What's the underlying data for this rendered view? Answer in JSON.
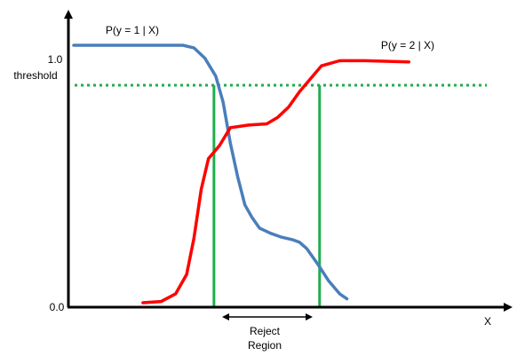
{
  "chart_data": {
    "type": "line",
    "xlabel": "X",
    "ylabel": "",
    "y_tick_labels": [
      "1.0",
      "threshold",
      "0.0"
    ],
    "threshold": 0.845,
    "ylim": [
      0,
      1.1
    ],
    "x_range": [
      0,
      1
    ],
    "series": [
      {
        "name": "P(y = 1 | X)",
        "color": "#4a7ebb",
        "points": [
          [
            0.0,
            1.0
          ],
          [
            0.3,
            1.0
          ],
          [
            0.33,
            0.99
          ],
          [
            0.36,
            0.95
          ],
          [
            0.39,
            0.88
          ],
          [
            0.41,
            0.78
          ],
          [
            0.43,
            0.62
          ],
          [
            0.45,
            0.49
          ],
          [
            0.47,
            0.38
          ],
          [
            0.49,
            0.33
          ],
          [
            0.51,
            0.29
          ],
          [
            0.54,
            0.27
          ],
          [
            0.57,
            0.255
          ],
          [
            0.6,
            0.245
          ],
          [
            0.62,
            0.235
          ],
          [
            0.64,
            0.21
          ],
          [
            0.67,
            0.15
          ],
          [
            0.7,
            0.085
          ],
          [
            0.73,
            0.035
          ],
          [
            0.75,
            0.015
          ]
        ]
      },
      {
        "name": "P(y = 2 | X)",
        "color": "#ff0000",
        "points": [
          [
            0.19,
            0.0
          ],
          [
            0.24,
            0.005
          ],
          [
            0.28,
            0.035
          ],
          [
            0.31,
            0.11
          ],
          [
            0.33,
            0.25
          ],
          [
            0.35,
            0.44
          ],
          [
            0.37,
            0.56
          ],
          [
            0.4,
            0.61
          ],
          [
            0.43,
            0.68
          ],
          [
            0.48,
            0.69
          ],
          [
            0.53,
            0.695
          ],
          [
            0.56,
            0.72
          ],
          [
            0.59,
            0.76
          ],
          [
            0.62,
            0.82
          ],
          [
            0.65,
            0.87
          ],
          [
            0.68,
            0.92
          ],
          [
            0.73,
            0.94
          ],
          [
            0.8,
            0.94
          ],
          [
            0.92,
            0.935
          ]
        ]
      }
    ],
    "reject_region": {
      "label": "Reject\nRegion",
      "label_line1": "Reject",
      "label_line2": "Region",
      "x_start": 0.385,
      "x_end": 0.675,
      "color": "#1fae4b"
    },
    "threshold_color": "#1fae4b"
  }
}
